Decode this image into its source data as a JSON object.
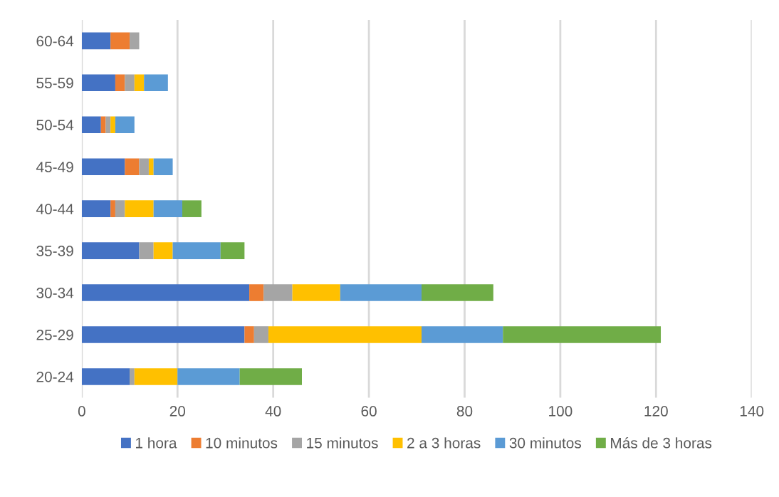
{
  "chart_data": {
    "type": "bar",
    "orientation": "horizontal",
    "stacked": true,
    "categories": [
      "60-64",
      "55-59",
      "50-54",
      "45-49",
      "40-44",
      "35-39",
      "30-34",
      "25-29",
      "20-24"
    ],
    "series": [
      {
        "name": "1 hora",
        "color": "#4472c4",
        "values": [
          6,
          7,
          4,
          9,
          6,
          12,
          35,
          34,
          10
        ]
      },
      {
        "name": "10 minutos",
        "color": "#ed7d31",
        "values": [
          4,
          2,
          1,
          3,
          1,
          0,
          3,
          2,
          0
        ]
      },
      {
        "name": "15 minutos",
        "color": "#a5a5a5",
        "values": [
          2,
          2,
          1,
          2,
          2,
          3,
          6,
          3,
          1
        ]
      },
      {
        "name": "2 a 3 horas",
        "color": "#ffc000",
        "values": [
          0,
          2,
          1,
          1,
          6,
          4,
          10,
          32,
          9
        ]
      },
      {
        "name": "30 minutos",
        "color": "#5b9bd5",
        "values": [
          0,
          5,
          4,
          4,
          6,
          10,
          17,
          17,
          13
        ]
      },
      {
        "name": "Más de 3 horas",
        "color": "#70ad47",
        "values": [
          0,
          0,
          0,
          0,
          4,
          5,
          15,
          33,
          13
        ]
      }
    ],
    "xlim": [
      0,
      140
    ],
    "xticks": [
      0,
      20,
      40,
      60,
      80,
      100,
      120,
      140
    ],
    "grid": "x",
    "legend": "bottom"
  }
}
